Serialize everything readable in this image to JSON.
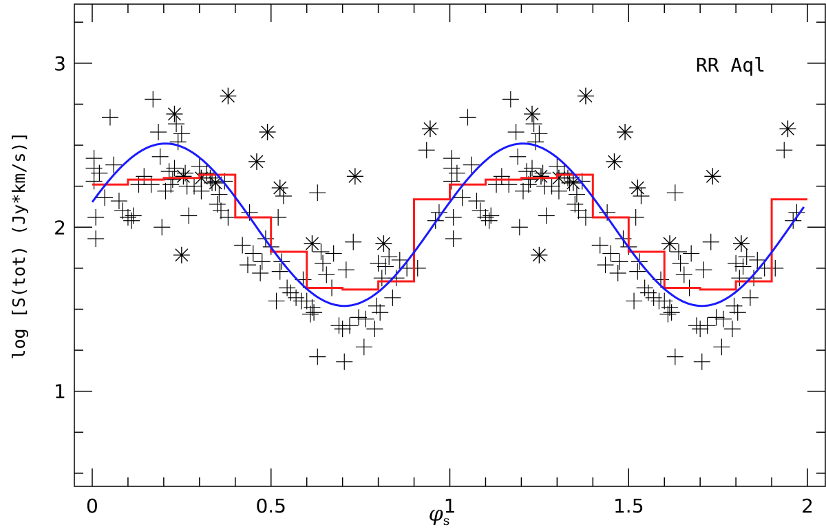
{
  "chart_data": {
    "type": "scatter",
    "title": "",
    "annotation": "RR Aql",
    "xlabel_symbol": "φ",
    "xlabel_sub": "s",
    "ylabel": "log [S(tot) (Jy*km/s)]",
    "xlim": [
      -0.05,
      2.05
    ],
    "ylim": [
      0.42,
      3.36
    ],
    "x_ticks": [
      {
        "value": 0,
        "label": "0"
      },
      {
        "value": 0.5,
        "label": "0.5"
      },
      {
        "value": 1,
        "label": "1"
      },
      {
        "value": 1.5,
        "label": "1.5"
      },
      {
        "value": 2,
        "label": "2"
      }
    ],
    "x_minor_step": 0.1,
    "y_ticks": [
      {
        "value": 1,
        "label": "1"
      },
      {
        "value": 2,
        "label": "2"
      },
      {
        "value": 3,
        "label": "3"
      }
    ],
    "y_minor_step": 0.25,
    "grid": false,
    "colors": {
      "sine": "#1a1aff",
      "binned": "#ff1a1a",
      "points": "#000000"
    },
    "sine_fit": {
      "mean": 2.015,
      "amplitude": 0.495,
      "period": 1.0,
      "phase_of_max": 0.205,
      "x_range": [
        0.0,
        1.99
      ]
    },
    "binned_means": {
      "bin_width": 0.1,
      "values": [
        2.26,
        2.29,
        2.3,
        2.32,
        2.06,
        1.85,
        1.63,
        1.62,
        1.67,
        2.17,
        2.26,
        2.29,
        2.3,
        2.32,
        2.06,
        1.85,
        1.63,
        1.62,
        1.67,
        2.17
      ]
    },
    "series": [
      {
        "marker": "plus",
        "points": [
          [
            0.005,
            2.42
          ],
          [
            0.005,
            2.36
          ],
          [
            0.005,
            2.28
          ],
          [
            0.01,
            2.06
          ],
          [
            0.01,
            1.93
          ],
          [
            0.02,
            2.33
          ],
          [
            0.035,
            2.18
          ],
          [
            0.05,
            2.67
          ],
          [
            0.06,
            2.38
          ],
          [
            0.075,
            2.16
          ],
          [
            0.085,
            2.1
          ],
          [
            0.1,
            2.06
          ],
          [
            0.11,
            2.04
          ],
          [
            0.115,
            2.07
          ],
          [
            0.13,
            2.26
          ],
          [
            0.145,
            2.31
          ],
          [
            0.165,
            2.26
          ],
          [
            0.17,
            2.78
          ],
          [
            0.185,
            2.58
          ],
          [
            0.19,
            2.43
          ],
          [
            0.195,
            2.0
          ],
          [
            0.205,
            2.22
          ],
          [
            0.215,
            2.34
          ],
          [
            0.22,
            2.26
          ],
          [
            0.225,
            2.29
          ],
          [
            0.23,
            2.36
          ],
          [
            0.235,
            2.63
          ],
          [
            0.24,
            2.52
          ],
          [
            0.25,
            2.57
          ],
          [
            0.26,
            2.33
          ],
          [
            0.265,
            2.25
          ],
          [
            0.27,
            2.07
          ],
          [
            0.285,
            2.25
          ],
          [
            0.3,
            2.37
          ],
          [
            0.305,
            2.22
          ],
          [
            0.32,
            2.33
          ],
          [
            0.33,
            2.3
          ],
          [
            0.335,
            2.27
          ],
          [
            0.345,
            2.28
          ],
          [
            0.35,
            2.14
          ],
          [
            0.355,
            2.2
          ],
          [
            0.36,
            2.1
          ],
          [
            0.37,
            2.28
          ],
          [
            0.38,
            2.06
          ],
          [
            0.42,
            1.89
          ],
          [
            0.435,
            1.77
          ],
          [
            0.44,
            2.09
          ],
          [
            0.45,
            1.84
          ],
          [
            0.47,
            1.72
          ],
          [
            0.475,
            1.79
          ],
          [
            0.485,
            1.93
          ],
          [
            0.5,
            1.88
          ],
          [
            0.515,
            1.55
          ],
          [
            0.52,
            2.06
          ],
          [
            0.525,
            1.73
          ],
          [
            0.53,
            1.79
          ],
          [
            0.535,
            2.19
          ],
          [
            0.545,
            1.63
          ],
          [
            0.555,
            1.6
          ],
          [
            0.57,
            1.57
          ],
          [
            0.585,
            1.55
          ],
          [
            0.59,
            1.68
          ],
          [
            0.6,
            1.55
          ],
          [
            0.61,
            1.47
          ],
          [
            0.615,
            1.51
          ],
          [
            0.62,
            1.48
          ],
          [
            0.63,
            2.21
          ],
          [
            0.63,
            1.21
          ],
          [
            0.64,
            1.85
          ],
          [
            0.645,
            1.78
          ],
          [
            0.655,
            1.71
          ],
          [
            0.67,
            1.63
          ],
          [
            0.675,
            1.84
          ],
          [
            0.69,
            1.4
          ],
          [
            0.7,
            1.38
          ],
          [
            0.705,
            1.18
          ],
          [
            0.71,
            1.74
          ],
          [
            0.72,
            1.4
          ],
          [
            0.73,
            1.91
          ],
          [
            0.745,
            1.45
          ],
          [
            0.76,
            1.27
          ],
          [
            0.765,
            1.44
          ],
          [
            0.79,
            1.38
          ],
          [
            0.795,
            1.52
          ],
          [
            0.8,
            1.78
          ],
          [
            0.805,
            1.48
          ],
          [
            0.81,
            1.69
          ],
          [
            0.82,
            1.76
          ],
          [
            0.83,
            1.82
          ],
          [
            0.84,
            1.57
          ],
          [
            0.85,
            1.69
          ],
          [
            0.86,
            1.8
          ],
          [
            0.88,
            1.75
          ],
          [
            0.91,
            1.75
          ],
          [
            0.935,
            2.47
          ],
          [
            0.96,
            2.04
          ],
          [
            0.97,
            2.09
          ]
        ]
      },
      {
        "marker": "asterisk",
        "points": [
          [
            0.23,
            2.69
          ],
          [
            0.25,
            1.83
          ],
          [
            0.255,
            2.31
          ],
          [
            0.305,
            2.3
          ],
          [
            0.345,
            2.27
          ],
          [
            0.38,
            2.8
          ],
          [
            0.46,
            2.4
          ],
          [
            0.49,
            2.58
          ],
          [
            0.525,
            2.24
          ],
          [
            0.615,
            1.9
          ],
          [
            0.735,
            2.31
          ],
          [
            0.815,
            1.9
          ],
          [
            0.945,
            2.6
          ]
        ]
      }
    ]
  }
}
